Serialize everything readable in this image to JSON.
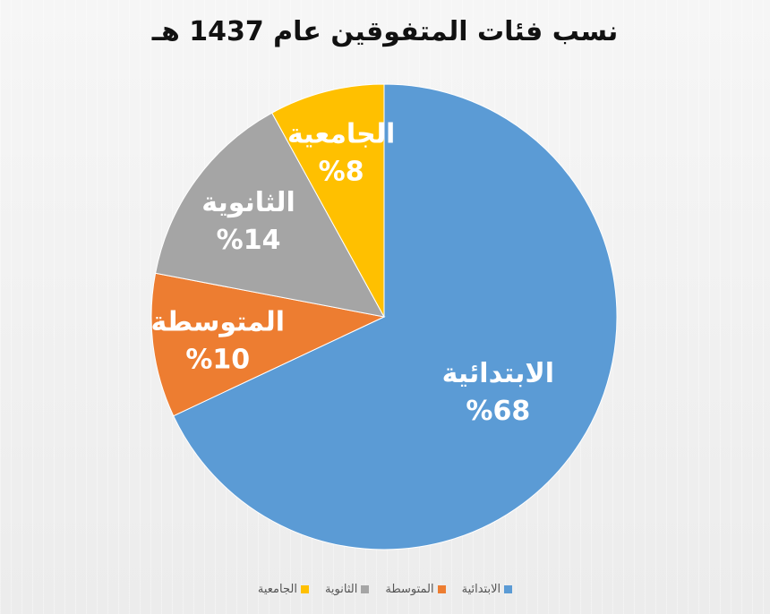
{
  "chart_data": {
    "type": "pie",
    "title": "نسب فئات المتفوقين عام 1437 هـ",
    "categories": [
      "الابتدائية",
      "المتوسطة",
      "الثانوية",
      "الجامعية"
    ],
    "values": [
      68,
      10,
      14,
      8
    ],
    "value_labels": [
      "%68",
      "%10",
      "%14",
      "%8"
    ],
    "colors": [
      "#5b9bd5",
      "#ed7d31",
      "#a5a5a5",
      "#ffc000"
    ],
    "legend_position": "bottom"
  }
}
